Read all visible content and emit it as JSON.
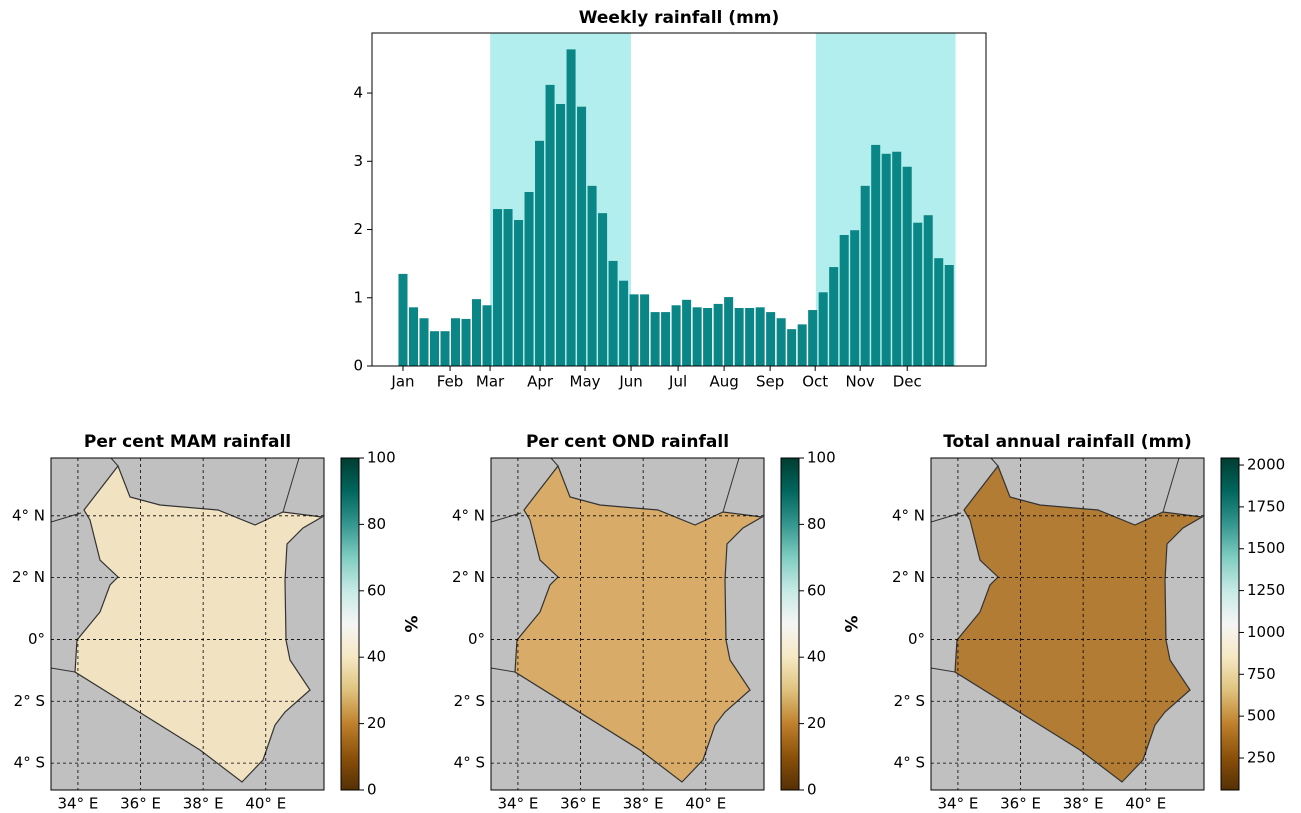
{
  "chart_data": [
    {
      "type": "bar",
      "title": "Weekly rainfall (mm)",
      "color": "#0b8686",
      "shade_color": "#b3eeee",
      "shaded_spans": [
        [
          9.3,
          22.7
        ],
        [
          40.3,
          53.6
        ]
      ],
      "x": [
        1,
        2,
        3,
        4,
        5,
        6,
        7,
        8,
        9,
        10,
        11,
        12,
        13,
        14,
        15,
        16,
        17,
        18,
        19,
        20,
        21,
        22,
        23,
        24,
        25,
        26,
        27,
        28,
        29,
        30,
        31,
        32,
        33,
        34,
        35,
        36,
        37,
        38,
        39,
        40,
        41,
        42,
        43,
        44,
        45,
        46,
        47,
        48,
        49,
        50,
        51,
        52,
        53
      ],
      "values": [
        1.35,
        0.86,
        0.7,
        0.51,
        0.51,
        0.7,
        0.69,
        0.98,
        0.89,
        2.3,
        2.3,
        2.14,
        2.55,
        3.3,
        4.12,
        3.84,
        4.64,
        3.8,
        2.64,
        2.24,
        1.54,
        1.25,
        1.05,
        1.05,
        0.79,
        0.79,
        0.89,
        0.97,
        0.86,
        0.85,
        0.91,
        1.01,
        0.85,
        0.85,
        0.86,
        0.79,
        0.7,
        0.54,
        0.61,
        0.82,
        1.08,
        1.45,
        1.92,
        1.99,
        2.64,
        3.24,
        3.11,
        3.14,
        2.92,
        2.1,
        2.21,
        1.58,
        1.48
      ],
      "xlim": [
        -1.95,
        56.5
      ],
      "ylim": [
        0,
        4.88
      ],
      "yticks": [
        0,
        1,
        2,
        3,
        4
      ],
      "xticks": [
        {
          "value": 1,
          "label": "Jan"
        },
        {
          "value": 5.48,
          "label": "Feb"
        },
        {
          "value": 9.29,
          "label": "Mar"
        },
        {
          "value": 14.05,
          "label": "Apr"
        },
        {
          "value": 18.33,
          "label": "May"
        },
        {
          "value": 22.71,
          "label": "Jun"
        },
        {
          "value": 27.19,
          "label": "Jul"
        },
        {
          "value": 31.57,
          "label": "Aug"
        },
        {
          "value": 35.95,
          "label": "Sep"
        },
        {
          "value": 40.24,
          "label": "Oct"
        },
        {
          "value": 44.52,
          "label": "Nov"
        },
        {
          "value": 49.0,
          "label": "Dec"
        }
      ]
    },
    {
      "type": "map",
      "title": "Per cent MAM rainfall",
      "color": "#f1e3c2",
      "xlim": [
        33.14,
        41.86
      ],
      "ylim": [
        -4.87,
        5.87
      ],
      "xticks": [
        {
          "value": 34,
          "label": "34° E"
        },
        {
          "value": 36,
          "label": "36° E"
        },
        {
          "value": 38,
          "label": "38° E"
        },
        {
          "value": 40,
          "label": "40° E"
        }
      ],
      "yticks": [
        {
          "value": 4,
          "label": "4° N"
        },
        {
          "value": 2,
          "label": "2° N"
        },
        {
          "value": 0,
          "label": "0°"
        },
        {
          "value": -2,
          "label": "2° S"
        },
        {
          "value": -4,
          "label": "4° S"
        }
      ],
      "colorbar_label": "%",
      "clim": [
        0,
        100
      ],
      "cticks": [
        0,
        20,
        40,
        60,
        80,
        100
      ],
      "colormap": [
        "#543005",
        "#8c510a",
        "#bf812d",
        "#dfc27d",
        "#f6e8c3",
        "#f5f5f5",
        "#c7eae5",
        "#80cdc1",
        "#35978f",
        "#01665e",
        "#003c30"
      ]
    },
    {
      "type": "map",
      "title": "Per cent OND rainfall",
      "color": "#d8ab68",
      "xlim": [
        33.14,
        41.86
      ],
      "ylim": [
        -4.87,
        5.87
      ],
      "xticks": [
        {
          "value": 34,
          "label": "34° E"
        },
        {
          "value": 36,
          "label": "36° E"
        },
        {
          "value": 38,
          "label": "38° E"
        },
        {
          "value": 40,
          "label": "40° E"
        }
      ],
      "yticks": [
        {
          "value": 4,
          "label": "4° N"
        },
        {
          "value": 2,
          "label": "2° N"
        },
        {
          "value": 0,
          "label": "0°"
        },
        {
          "value": -2,
          "label": "2° S"
        },
        {
          "value": -4,
          "label": "4° S"
        }
      ],
      "colorbar_label": "%",
      "clim": [
        0,
        100
      ],
      "cticks": [
        0,
        20,
        40,
        60,
        80,
        100
      ],
      "colormap": [
        "#543005",
        "#8c510a",
        "#bf812d",
        "#dfc27d",
        "#f6e8c3",
        "#f5f5f5",
        "#c7eae5",
        "#80cdc1",
        "#35978f",
        "#01665e",
        "#003c30"
      ]
    },
    {
      "type": "map",
      "title": "Total annual rainfall (mm)",
      "color": "#b27c35",
      "xlim": [
        33.14,
        41.86
      ],
      "ylim": [
        -4.87,
        5.87
      ],
      "xticks": [
        {
          "value": 34,
          "label": "34° E"
        },
        {
          "value": 36,
          "label": "36° E"
        },
        {
          "value": 38,
          "label": "38° E"
        },
        {
          "value": 40,
          "label": "40° E"
        }
      ],
      "yticks": [
        {
          "value": 4,
          "label": "4° N"
        },
        {
          "value": 2,
          "label": "2° N"
        },
        {
          "value": 0,
          "label": "0°"
        },
        {
          "value": -2,
          "label": "2° S"
        },
        {
          "value": -4,
          "label": "4° S"
        }
      ],
      "clim": [
        59,
        2042
      ],
      "cticks": [
        250,
        500,
        750,
        1000,
        1250,
        1500,
        1750,
        2000
      ],
      "colormap": [
        "#543005",
        "#8c510a",
        "#bf812d",
        "#dfc27d",
        "#f6e8c3",
        "#f5f5f5",
        "#c7eae5",
        "#80cdc1",
        "#35978f",
        "#01665e",
        "#003c30"
      ]
    }
  ]
}
